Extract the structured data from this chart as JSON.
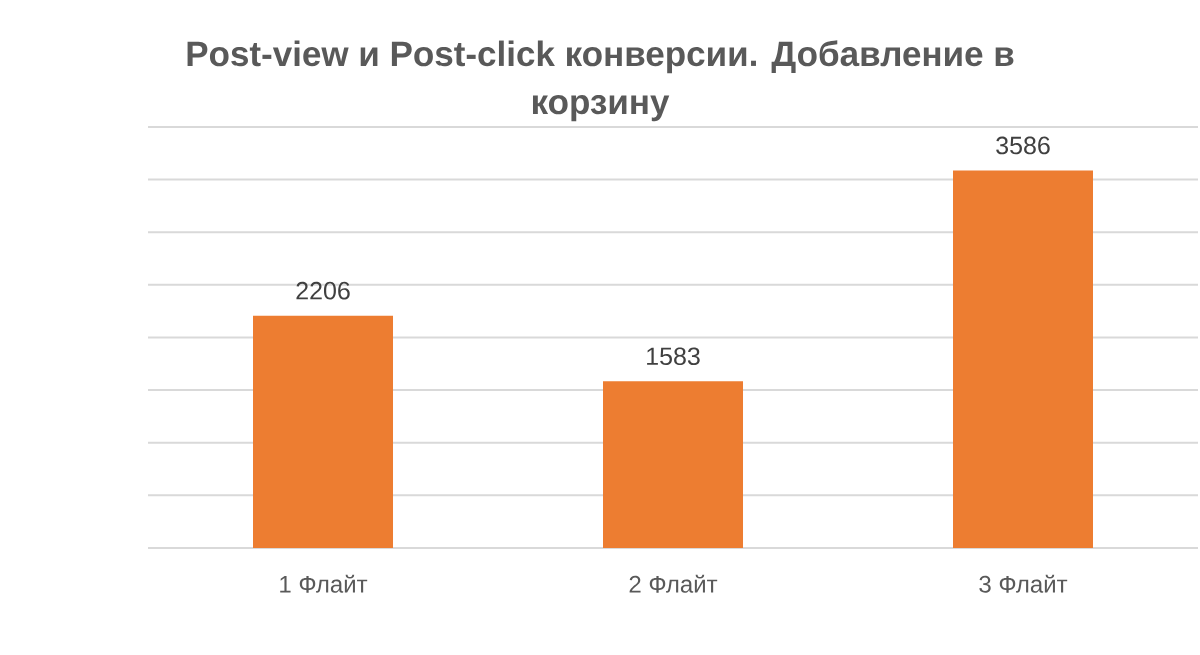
{
  "chart_data": {
    "type": "bar",
    "title": "Post-view и  Post-click конверсии. Добавление в корзину",
    "categories": [
      "1 Флайт",
      "2 Флайт",
      "3 Флайт"
    ],
    "values": [
      2206,
      1583,
      3586
    ],
    "color": "#ed7d31",
    "ylim": [
      0,
      4000
    ],
    "yticks": [
      0,
      500,
      1000,
      1500,
      2000,
      2500,
      3000,
      3500,
      4000
    ],
    "grid": "y",
    "tick_labels": "x",
    "data_labels": true
  }
}
